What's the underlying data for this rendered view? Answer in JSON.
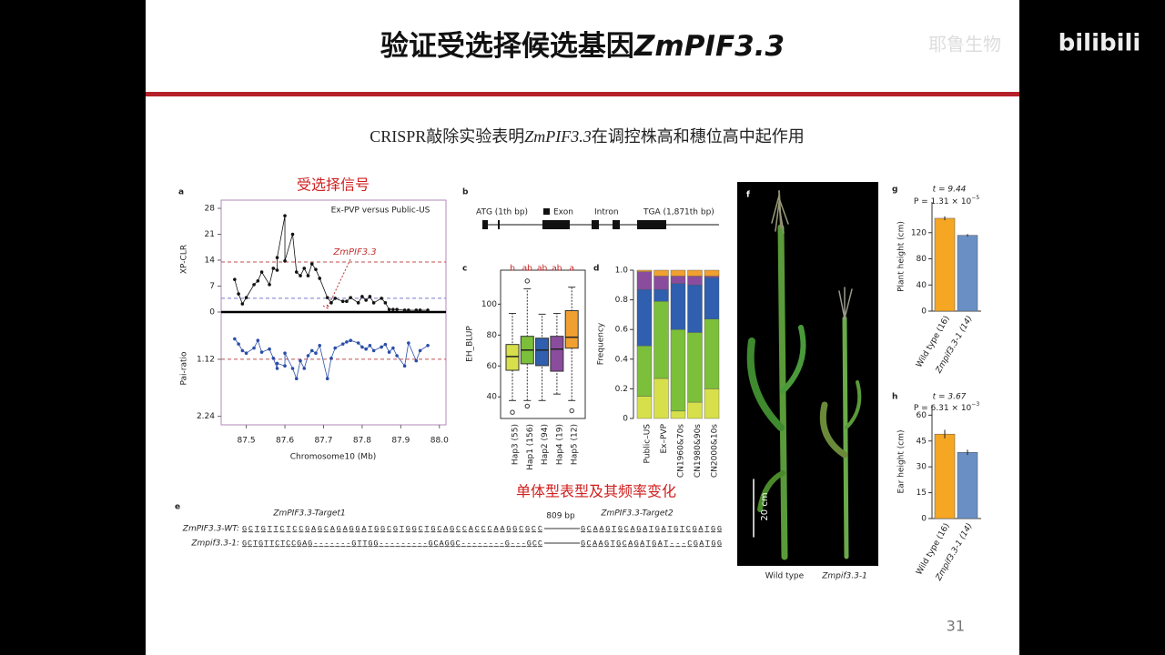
{
  "slide": {
    "title": "验证受选择候选基因",
    "title_gene": "ZmPIF3.3",
    "subtitle_pre": "CRISPR敲除实验表明",
    "subtitle_gene": "ZmPIF3.3",
    "subtitle_post": "在调控株高和穗位高中起作用",
    "page_number": "31",
    "watermark": "耶鲁生物",
    "logo": "bilibili"
  },
  "annotations": {
    "signal": "受选择信号",
    "haplotype": "单体型表型及其频率变化"
  },
  "panels": {
    "a": {
      "label": "a",
      "legend": "Ex-PVP versus Public-US",
      "gene": "ZmPIF3.3",
      "ylabel": "XP-CLR",
      "ylim": [
        0,
        28
      ],
      "yticks": [
        0,
        7,
        14,
        21,
        28
      ],
      "y2label": "Pai-ratio",
      "y2lim": [
        0.3,
        2.3
      ],
      "y2ticks": [
        1.12,
        2.24
      ],
      "xlabel": "Chromosome10 (Mb)",
      "xlim": [
        87.435,
        88.017
      ],
      "xticks": [
        87.5,
        87.6,
        87.7,
        87.8,
        87.9,
        {
          "value": 88,
          "label": "88.0"
        }
      ],
      "thresholds": [
        13.5,
        3.7
      ],
      "pai_threshold": 1.12,
      "x": [
        87.47,
        87.48,
        87.49,
        87.5,
        87.52,
        87.53,
        87.54,
        87.56,
        87.57,
        87.58,
        87.58,
        87.6,
        87.6,
        87.62,
        87.63,
        87.64,
        87.65,
        87.66,
        87.67,
        87.68,
        87.69,
        87.71,
        87.72,
        87.73,
        87.75,
        87.76,
        87.77,
        87.79,
        87.8,
        87.81,
        87.82,
        87.83,
        87.85,
        87.86,
        87.87,
        87.88,
        87.89,
        87.91,
        87.92,
        87.94,
        87.95,
        87.97
      ],
      "xpclr": [
        8.8,
        4.9,
        2.2,
        3.9,
        7.4,
        8.4,
        10.8,
        7.4,
        11.8,
        11.3,
        14.7,
        26,
        13.8,
        21,
        10.8,
        9.8,
        11.8,
        9.8,
        13,
        11.5,
        9.1,
        3.9,
        2.5,
        3.7,
        2.9,
        2.9,
        3.9,
        2.5,
        4.2,
        3.2,
        4.2,
        2.5,
        3.7,
        2.5,
        0.7,
        0.7,
        0.7,
        0.5,
        0.5,
        0.5,
        0.5,
        0.5
      ],
      "pai": [
        0.72,
        0.82,
        0.95,
        1.0,
        0.9,
        0.75,
        0.98,
        0.92,
        1.1,
        1.3,
        1.2,
        1.25,
        1.0,
        1.3,
        1.5,
        1.15,
        1.3,
        1.05,
        0.95,
        1.0,
        0.85,
        1.5,
        1.1,
        0.9,
        0.82,
        0.78,
        0.75,
        0.8,
        0.88,
        0.92,
        0.85,
        0.95,
        0.88,
        0.83,
        0.98,
        0.9,
        1.05,
        1.25,
        0.8,
        1.15,
        0.95,
        0.85
      ]
    },
    "b": {
      "label": "b",
      "start": "ATG (1th bp)",
      "exon": "Exon",
      "intron": "Intron",
      "end": "TGA (1,871th bp)"
    },
    "c": {
      "label": "c",
      "ylabel": "EH_BLUP",
      "ylim": [
        26,
        122
      ],
      "yticks": [
        40,
        60,
        80,
        100
      ],
      "categories": [
        "Hap3 (55)",
        "Hap1 (156)",
        "Hap2 (94)",
        "Hap4 (19)",
        "Hap5 (12)"
      ],
      "letters": [
        "b",
        "ab",
        "ab",
        "ab",
        "a"
      ],
      "colors": [
        "#d7e04a",
        "#7cbf3a",
        "#2f5fae",
        "#8a4d9e",
        "#f0a030"
      ],
      "min": [
        37.6,
        37.6,
        37.6,
        41.8,
        37.6
      ],
      "q1": [
        57.2,
        61.4,
        60.2,
        56.6,
        71.5
      ],
      "median": [
        66.1,
        70.3,
        70.3,
        70.9,
        78.6
      ],
      "q3": [
        73.9,
        79.2,
        78,
        79.2,
        95.8
      ],
      "max": [
        94,
        110,
        93.5,
        94,
        111
      ],
      "outliers": [
        [
          30
        ],
        [
          115,
          34
        ],
        [],
        [],
        [
          31
        ]
      ]
    },
    "d": {
      "label": "d",
      "ylabel": "Frequency",
      "ylim": [
        0,
        1
      ],
      "yticks": [
        0,
        0.2,
        0.4,
        0.6,
        0.8,
        {
          "value": 1,
          "label": "1.0"
        }
      ],
      "categories": [
        "Public–US",
        "Ex–PVP",
        "CN1960&70s",
        "CN1980&90s",
        "CN2000&10s"
      ],
      "series": [
        {
          "color": "#d7e04a",
          "values": [
            0.15,
            0.27,
            0.05,
            0.11,
            0.2
          ]
        },
        {
          "color": "#7cbf3a",
          "values": [
            0.34,
            0.52,
            0.55,
            0.47,
            0.47
          ]
        },
        {
          "color": "#2f5fae",
          "values": [
            0.38,
            0.08,
            0.31,
            0.32,
            0.28
          ]
        },
        {
          "color": "#8a4d9e",
          "values": [
            0.12,
            0.09,
            0.05,
            0.06,
            0.01
          ]
        },
        {
          "color": "#f0a030",
          "values": [
            0.01,
            0.04,
            0.04,
            0.04,
            0.04
          ]
        }
      ]
    },
    "e": {
      "label": "e",
      "target1": "ZmPIF3.3-Target1",
      "target2": "ZmPIF3.3-Target2",
      "gap": "809 bp",
      "rows": [
        {
          "name": "ZmPIF3.3-WT:",
          "left": "GCTGTTCTCCGAGCAGAGGATGGCGTGGCTGCAGCCACCCAAGGCGCC",
          "right": "GCAAGTGCAGATGATGTCGATGG"
        },
        {
          "name": "Zmpif3.3-1:",
          "left": "GCTGTTCTCCGAG-------GTTGG---------GCAGGC--------G---GCC",
          "right": "GCAAGTGCAGATGAT---CGATGG"
        }
      ]
    },
    "f": {
      "label": "f",
      "scale": "20 cm",
      "captions": [
        "Wild type",
        "Zmpif3.3-1"
      ]
    },
    "g": {
      "label": "g",
      "t": "t = 9.44",
      "p": "P = 1.31 × 10",
      "p_exp": "−5",
      "ylabel": "Plant height (cm)",
      "ylim": [
        0,
        167
      ],
      "yticks": [
        0,
        40,
        80,
        120
      ],
      "categories": [
        "Wild type (16)",
        "Zmpif3.3-1 (14)"
      ],
      "colors": [
        "#f5a623",
        "#6a8fc4"
      ],
      "values": [
        142,
        116
      ],
      "errors": [
        3,
        2
      ]
    },
    "h": {
      "label": "h",
      "t": "t = 3.67",
      "p": "P = 6.31 × 10",
      "p_exp": "−3",
      "ylabel": "Ear height (cm)",
      "ylim": [
        0,
        66
      ],
      "yticks": [
        0,
        15,
        30,
        45,
        60
      ],
      "categories": [
        "Wild type (16)",
        "Zmpif3.3-1 (14)"
      ],
      "colors": [
        "#f5a623",
        "#6a8fc4"
      ],
      "values": [
        49,
        38.4
      ],
      "errors": [
        2.5,
        1.5
      ]
    }
  }
}
